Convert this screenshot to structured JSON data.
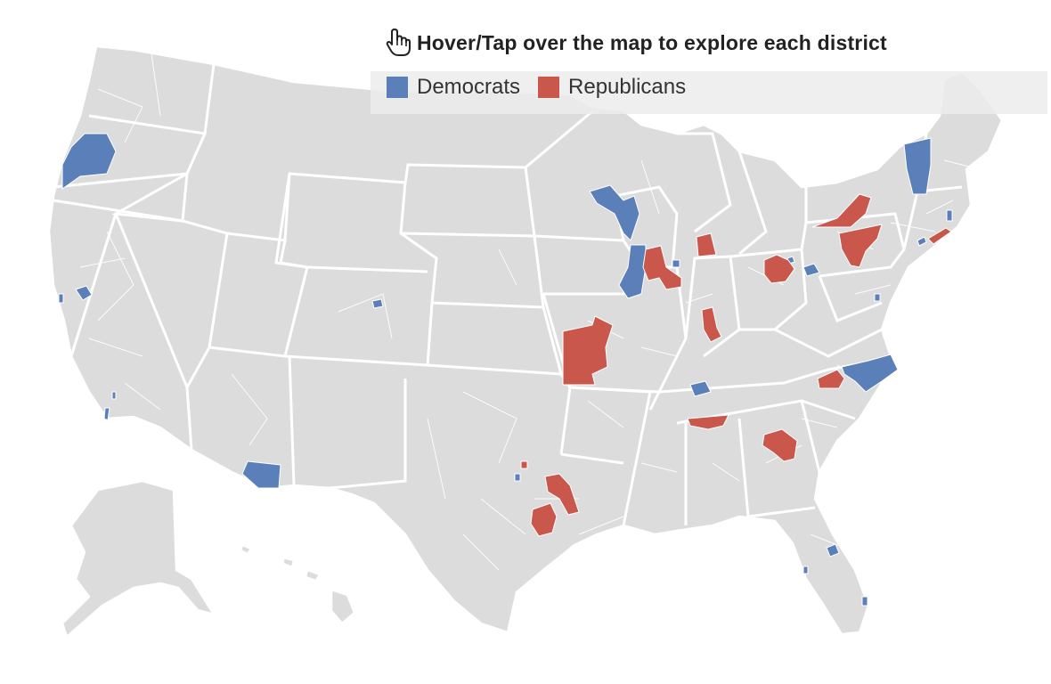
{
  "instruction": {
    "text": "Hover/Tap over the map to explore each district",
    "icon": "pointing-hand-icon"
  },
  "legend": [
    {
      "label": "Democrats",
      "color": "#5b7fb9"
    },
    {
      "label": "Republicans",
      "color": "#c9574c"
    }
  ],
  "map": {
    "base_color": "#dcdcdc",
    "border_color": "#ffffff",
    "highlighted_districts": [
      {
        "id": "or-4",
        "party": "Democrats"
      },
      {
        "id": "ca-north-bay",
        "party": "Democrats"
      },
      {
        "id": "ca-sacramento",
        "party": "Democrats"
      },
      {
        "id": "ca-la",
        "party": "Democrats"
      },
      {
        "id": "az-south",
        "party": "Democrats"
      },
      {
        "id": "co-denver",
        "party": "Democrats"
      },
      {
        "id": "wi-west",
        "party": "Democrats"
      },
      {
        "id": "ia-east",
        "party": "Democrats"
      },
      {
        "id": "il-chicago",
        "party": "Democrats"
      },
      {
        "id": "mo-west",
        "party": "Republicans"
      },
      {
        "id": "il-north",
        "party": "Republicans"
      },
      {
        "id": "mi-west",
        "party": "Republicans"
      },
      {
        "id": "in-central",
        "party": "Republicans"
      },
      {
        "id": "oh-north",
        "party": "Republicans"
      },
      {
        "id": "oh-east",
        "party": "Democrats"
      },
      {
        "id": "pa-central",
        "party": "Republicans"
      },
      {
        "id": "pa-north",
        "party": "Republicans"
      },
      {
        "id": "ny-long-island",
        "party": "Republicans"
      },
      {
        "id": "ri-1",
        "party": "Democrats"
      },
      {
        "id": "vt-al",
        "party": "Democrats"
      },
      {
        "id": "md-dc",
        "party": "Democrats"
      },
      {
        "id": "va-west",
        "party": "Republicans"
      },
      {
        "id": "nc-central",
        "party": "Democrats"
      },
      {
        "id": "tn-middle",
        "party": "Democrats"
      },
      {
        "id": "al-north",
        "party": "Republicans"
      },
      {
        "id": "ga-central",
        "party": "Republicans"
      },
      {
        "id": "tx-dallas",
        "party": "Republicans"
      },
      {
        "id": "tx-central",
        "party": "Republicans"
      },
      {
        "id": "tx-north",
        "party": "Democrats"
      },
      {
        "id": "fl-central",
        "party": "Democrats"
      },
      {
        "id": "fl-south",
        "party": "Democrats"
      }
    ]
  }
}
